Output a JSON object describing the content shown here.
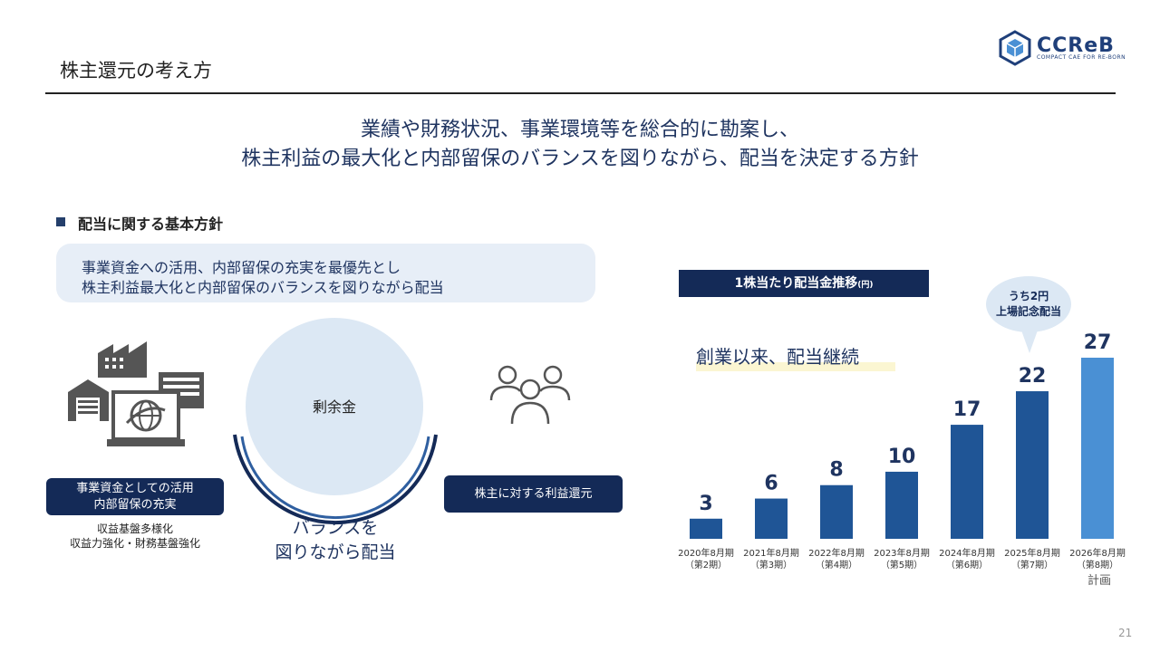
{
  "header": {
    "title": "株主還元の考え方"
  },
  "logo": {
    "text": "CCReB",
    "subtext": "COMPACT CAE FOR RE-BORN"
  },
  "headline": {
    "line1": "業績や財務状況、事業環境等を総合的に勘案し、",
    "line2": "株主利益の最大化と内部留保のバランスを図りながら、配当を決定する方針"
  },
  "policy": {
    "heading": "配当に関する基本方針",
    "line1": "事業資金への活用、内部留保の充実を最優先とし",
    "line2": "株主利益最大化と内部留保のバランスを図りながら配当"
  },
  "diagram": {
    "circle_label": "剰余金",
    "balance_line1": "バランスを",
    "balance_line2": "図りながら配当",
    "left_box_line1": "事業資金としての活用",
    "left_box_line2": "内部留保の充実",
    "left_sub1": "収益基盤多様化",
    "left_sub2": "収益力強化・財務基盤強化",
    "right_box": "株主に対する利益還元",
    "left_icon": "factory-office-computer-icon",
    "right_icon": "people-group-icon"
  },
  "chart_panel": {
    "title_main": "1株当たり配当金推移",
    "title_unit": "(円)",
    "tagline": "創業以来、配当継続",
    "bubble_line1": "うち2円",
    "bubble_line2": "上場記念配当",
    "footnote": "計画"
  },
  "chart_data": {
    "type": "bar",
    "categories": [
      [
        "2020年8月期",
        "（第2期）"
      ],
      [
        "2021年8月期",
        "（第3期）"
      ],
      [
        "2022年8月期",
        "（第4期）"
      ],
      [
        "2023年8月期",
        "（第5期）"
      ],
      [
        "2024年8月期",
        "（第6期）"
      ],
      [
        "2025年8月期",
        "（第7期）"
      ],
      [
        "2026年8月期",
        "（第8期）"
      ]
    ],
    "values": [
      3,
      6,
      8,
      10,
      17,
      22,
      27
    ],
    "ylim": [
      0,
      27
    ],
    "colors": [
      "#1f5596",
      "#1f5596",
      "#1f5596",
      "#1f5596",
      "#1f5596",
      "#1f5596",
      "#4a90d4"
    ],
    "label_color": "#1f3460"
  },
  "page": {
    "number": "21"
  }
}
